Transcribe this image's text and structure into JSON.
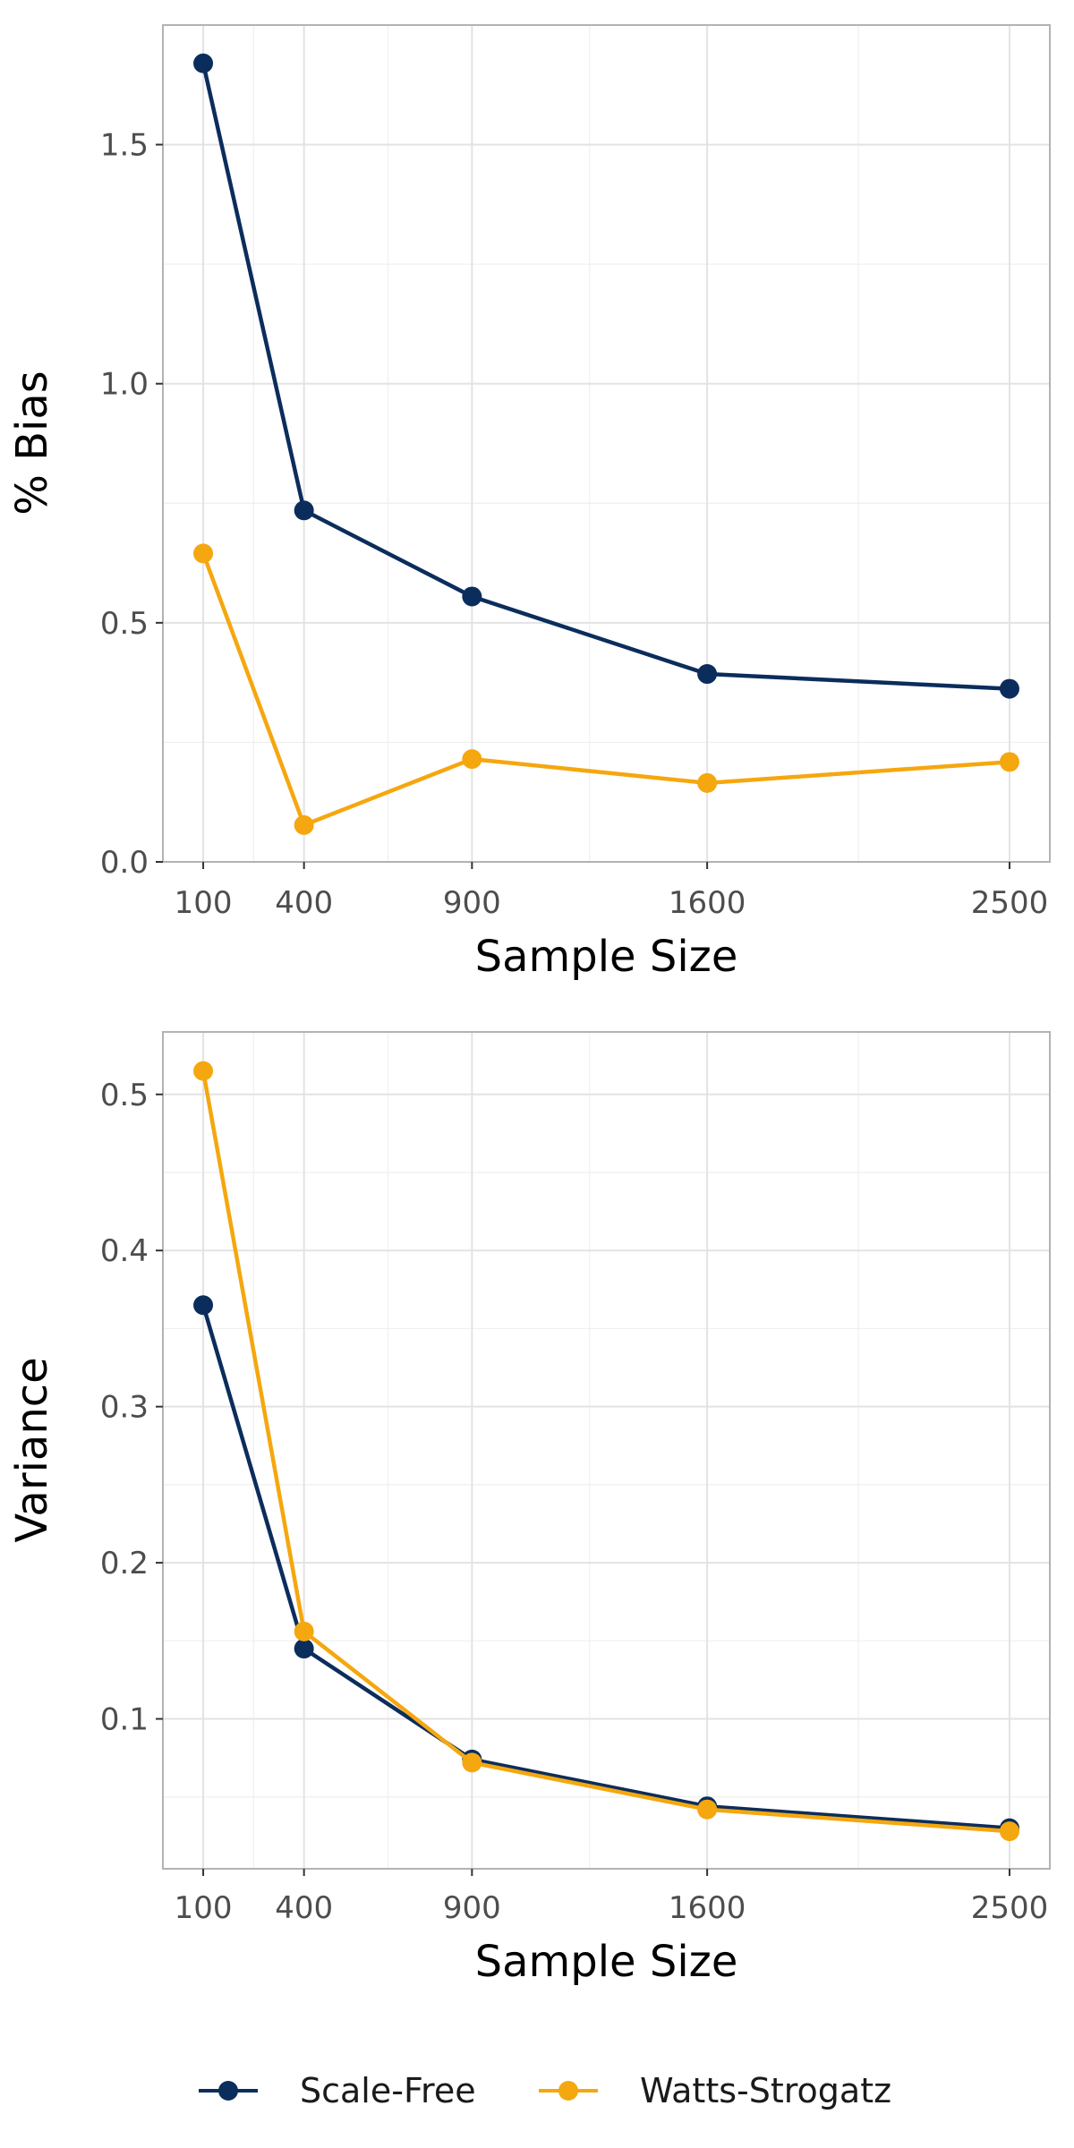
{
  "colors": {
    "scale_free": "#0b2d5c",
    "watts_strogatz": "#f5a70f"
  },
  "legend": {
    "items": [
      {
        "label": "Scale-Free",
        "color": "#0b2d5c"
      },
      {
        "label": "Watts-Strogatz",
        "color": "#f5a70f"
      }
    ]
  },
  "chart_data": [
    {
      "type": "line",
      "xlabel": "Sample Size",
      "ylabel": "% Bias",
      "x": [
        100,
        400,
        900,
        1600,
        2500
      ],
      "x_ticks": [
        "100",
        "400",
        "900",
        "1600",
        "2500"
      ],
      "y_ticks": [
        "0.0",
        "0.5",
        "1.0",
        "1.5"
      ],
      "y_tick_values": [
        0,
        0.5,
        1.0,
        1.5
      ],
      "xlim": [
        -20,
        2620
      ],
      "ylim": [
        0,
        1.75
      ],
      "grid": true,
      "series": [
        {
          "name": "Scale-Free",
          "color": "#0b2d5c",
          "values": [
            1.67,
            0.735,
            0.555,
            0.393,
            0.362
          ]
        },
        {
          "name": "Watts-Strogatz",
          "color": "#f5a70f",
          "values": [
            0.645,
            0.077,
            0.215,
            0.165,
            0.209
          ]
        }
      ]
    },
    {
      "type": "line",
      "xlabel": "Sample Size",
      "ylabel": "Variance",
      "x": [
        100,
        400,
        900,
        1600,
        2500
      ],
      "x_ticks": [
        "100",
        "400",
        "900",
        "1600",
        "2500"
      ],
      "y_ticks": [
        "0.1",
        "0.2",
        "0.3",
        "0.4",
        "0.5"
      ],
      "y_tick_values": [
        0.1,
        0.2,
        0.3,
        0.4,
        0.5
      ],
      "xlim": [
        -20,
        2620
      ],
      "ylim": [
        0.004,
        0.54
      ],
      "grid": true,
      "series": [
        {
          "name": "Scale-Free",
          "color": "#0b2d5c",
          "values": [
            0.365,
            0.145,
            0.074,
            0.044,
            0.03
          ]
        },
        {
          "name": "Watts-Strogatz",
          "color": "#f5a70f",
          "values": [
            0.515,
            0.156,
            0.072,
            0.042,
            0.028
          ]
        }
      ]
    }
  ]
}
